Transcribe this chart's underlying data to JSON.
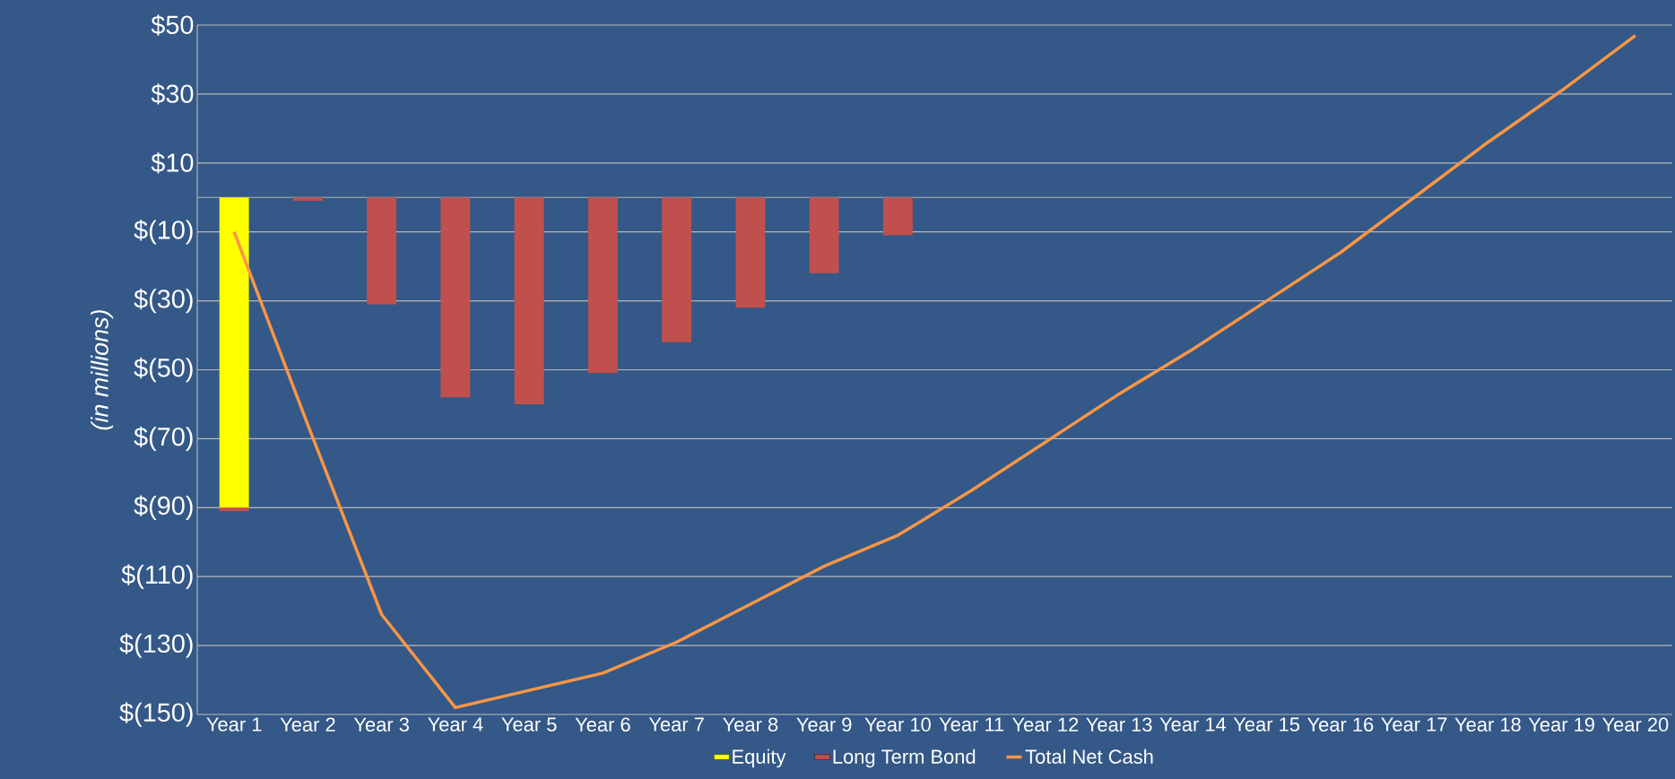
{
  "chart_data": {
    "type": "bar",
    "ylabel": "(in millions)",
    "stacked": true,
    "grid": "y",
    "legend": "bottom",
    "categories": [
      "Year 1",
      "Year 2",
      "Year 3",
      "Year 4",
      "Year 5",
      "Year 6",
      "Year 7",
      "Year 8",
      "Year 9",
      "Year 10",
      "Year 11",
      "Year 12",
      "Year 13",
      "Year 14",
      "Year 15",
      "Year 16",
      "Year 17",
      "Year 18",
      "Year 19",
      "Year 20"
    ],
    "series": [
      {
        "name": "Equity",
        "color": "#ffff00",
        "values": [
          -90,
          null,
          null,
          null,
          null,
          null,
          null,
          null,
          null,
          null,
          null,
          null,
          null,
          null,
          null,
          null,
          null,
          null,
          null,
          null
        ]
      },
      {
        "name": "Long Term Bond",
        "color": "#c0504d",
        "values": [
          -1,
          -1,
          -31,
          -58,
          -60,
          -51,
          -42,
          -32,
          -22,
          -11,
          null,
          null,
          null,
          null,
          null,
          null,
          null,
          null,
          null,
          null
        ]
      },
      {
        "name": "Total Net Cash",
        "type": "line",
        "color": "#f79646",
        "values": [
          -10,
          -66,
          -121,
          -148,
          -143,
          -138,
          -129,
          -118,
          -107,
          -98,
          -85,
          -71,
          -57,
          -44,
          -30,
          -16,
          0,
          16,
          31,
          47
        ]
      }
    ],
    "ylim": [
      -150,
      50
    ],
    "yticks": [
      {
        "value": -150,
        "label": "$(150)"
      },
      {
        "value": -130,
        "label": "$(130)"
      },
      {
        "value": -110,
        "label": "$(110)"
      },
      {
        "value": -90,
        "label": "$(90)"
      },
      {
        "value": -70,
        "label": "$(70)"
      },
      {
        "value": -50,
        "label": "$(50)"
      },
      {
        "value": -30,
        "label": "$(30)"
      },
      {
        "value": -10,
        "label": "$(10)"
      },
      {
        "value": 10,
        "label": "$10"
      },
      {
        "value": 30,
        "label": "$30"
      },
      {
        "value": 50,
        "label": "$50"
      }
    ]
  }
}
